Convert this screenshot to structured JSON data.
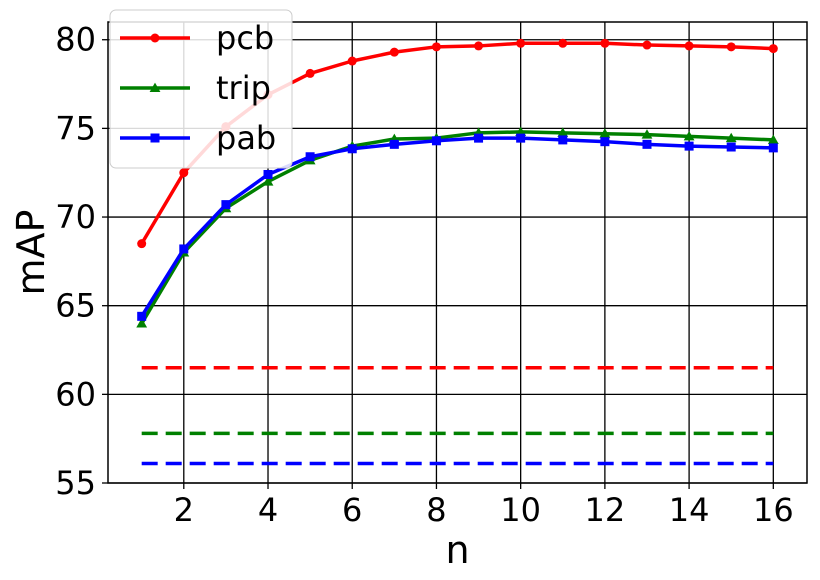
{
  "chart_data": {
    "type": "line",
    "title": "",
    "xlabel": "n",
    "ylabel": "mAP",
    "xlim": [
      0.2,
      16.8
    ],
    "ylim": [
      55,
      81
    ],
    "xticks": [
      2,
      4,
      6,
      8,
      10,
      12,
      14,
      16
    ],
    "yticks": [
      55,
      60,
      65,
      70,
      75,
      80
    ],
    "grid": true,
    "legend_position": "top-left",
    "x": [
      1,
      2,
      3,
      4,
      5,
      6,
      7,
      8,
      9,
      10,
      11,
      12,
      13,
      14,
      15,
      16
    ],
    "series": [
      {
        "name": "pcb",
        "color": "#ff0000",
        "marker": "circle",
        "values": [
          68.5,
          72.5,
          75.1,
          76.9,
          78.1,
          78.8,
          79.3,
          79.6,
          79.65,
          79.8,
          79.8,
          79.8,
          79.7,
          79.65,
          79.6,
          79.5
        ]
      },
      {
        "name": "trip",
        "color": "#008000",
        "marker": "triangle",
        "values": [
          64.0,
          68.0,
          70.5,
          72.0,
          73.2,
          74.0,
          74.4,
          74.45,
          74.75,
          74.8,
          74.75,
          74.7,
          74.65,
          74.55,
          74.45,
          74.35
        ]
      },
      {
        "name": "pab",
        "color": "#0000ff",
        "marker": "square",
        "values": [
          64.4,
          68.2,
          70.7,
          72.4,
          73.4,
          73.85,
          74.1,
          74.3,
          74.45,
          74.45,
          74.35,
          74.25,
          74.1,
          74.0,
          73.95,
          73.9
        ]
      }
    ],
    "baselines": [
      {
        "color": "#ff0000",
        "value": 61.5,
        "x_range": [
          1,
          16
        ]
      },
      {
        "color": "#008000",
        "value": 57.8,
        "x_range": [
          1,
          16
        ]
      },
      {
        "color": "#0000ff",
        "value": 56.1,
        "x_range": [
          1,
          16
        ]
      }
    ]
  }
}
